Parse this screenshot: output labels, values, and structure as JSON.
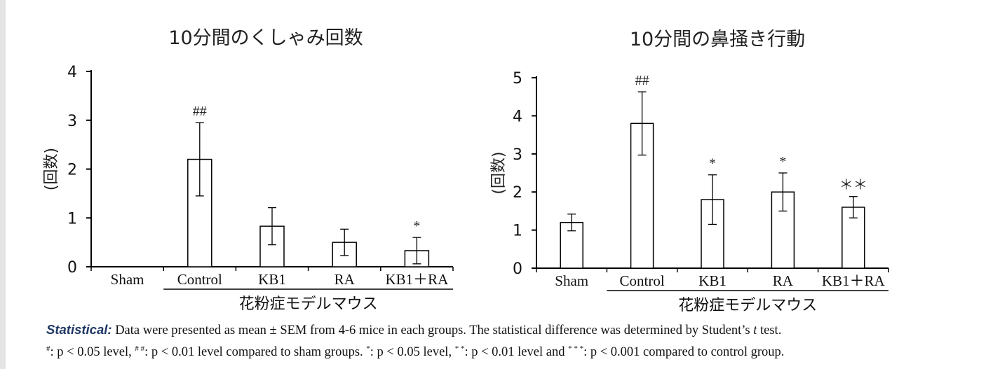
{
  "chart_data": [
    {
      "type": "bar",
      "title": "10分間のくしゃみ回数",
      "ylabel": "(回数)",
      "xlabel": "花粉症モデルマウス",
      "ylim": [
        0,
        4
      ],
      "yticks": [
        0,
        1,
        2,
        3,
        4
      ],
      "categories": [
        "Sham",
        "Control",
        "KB1",
        "RA",
        "KB1＋RA"
      ],
      "values": [
        0,
        2.2,
        0.83,
        0.5,
        0.33
      ],
      "errors": [
        0,
        0.75,
        0.38,
        0.27,
        0.27
      ],
      "annotations": [
        "",
        "##",
        "",
        "",
        "*"
      ]
    },
    {
      "type": "bar",
      "title": "10分間の鼻掻き行動",
      "ylabel": "(回数)",
      "xlabel": "花粉症モデルマウス",
      "ylim": [
        0,
        5
      ],
      "yticks": [
        0,
        1,
        2,
        3,
        4,
        5
      ],
      "categories": [
        "Sham",
        "Control",
        "KB1",
        "RA",
        "KB1＋RA"
      ],
      "values": [
        1.2,
        3.8,
        1.8,
        2.0,
        1.6
      ],
      "errors": [
        0.22,
        0.83,
        0.65,
        0.5,
        0.28
      ],
      "annotations": [
        "",
        "##",
        "*",
        "*",
        "＊＊"
      ]
    }
  ],
  "footnote": {
    "label": "Statistical:",
    "line1_rest": " Data were presented as mean ± SEM from 4-6 mice in each groups. The statistical difference was determined by Student’s ",
    "t": "t",
    "line1_end": " test.",
    "hash1": "#",
    "p_a": ": p < 0.05 level, ",
    "hash2": "# #",
    "p_b": ": p < 0.01 level compared to sham groups. ",
    "star1": "*",
    "p_c": ": p < 0.05 level, ",
    "star2": "* *",
    "p_d": ": p < 0.01 level and ",
    "star3": "* * *",
    "p_e": ": p < 0.001 compared to control group."
  }
}
